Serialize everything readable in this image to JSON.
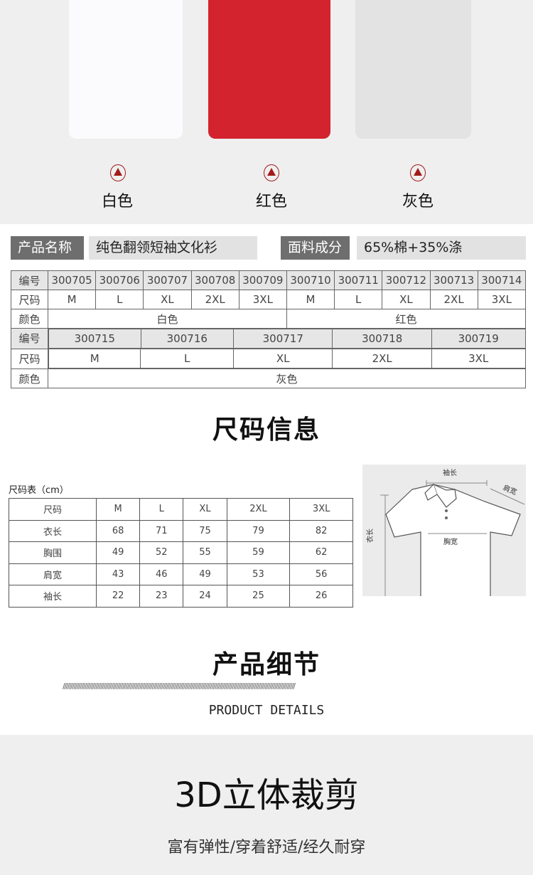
{
  "colors": {
    "white_shirt": "#fbfbfd",
    "red_shirt": "#d3232f",
    "gray_shirt": "#e3e3e3",
    "arrow": "#a31a1a",
    "label_dark": "#6e6e6e",
    "label_light": "#e2e2e2"
  },
  "swatches": [
    {
      "label": "白色",
      "icon": "up-arrow-circle-icon"
    },
    {
      "label": "红色",
      "icon": "up-arrow-circle-icon"
    },
    {
      "label": "灰色",
      "icon": "up-arrow-circle-icon"
    }
  ],
  "info": {
    "name_label": "产品名称",
    "name_value": "纯色翻领短袖文化衫",
    "fabric_label": "面料成分",
    "fabric_value": "65%棉+35%涤"
  },
  "sku_table": {
    "row_labels": {
      "code": "编号",
      "size": "尺码",
      "color": "颜色"
    },
    "group1": {
      "codes": [
        "300705",
        "300706",
        "300707",
        "300708",
        "300709",
        "300710",
        "300711",
        "300712",
        "300713",
        "300714"
      ],
      "sizes": [
        "M",
        "L",
        "XL",
        "2XL",
        "3XL",
        "M",
        "L",
        "XL",
        "2XL",
        "3XL"
      ],
      "colors": [
        "白色",
        "红色"
      ]
    },
    "group2": {
      "codes": [
        "300715",
        "300716",
        "300717",
        "300718",
        "300719"
      ],
      "sizes": [
        "M",
        "L",
        "XL",
        "2XL",
        "3XL"
      ],
      "color": "灰色"
    }
  },
  "size_section": {
    "title": "尺码信息",
    "caption": "尺码表（cm）",
    "header": [
      "尺码",
      "M",
      "L",
      "XL",
      "2XL",
      "3XL"
    ],
    "rows": [
      [
        "衣长",
        "68",
        "71",
        "75",
        "79",
        "82"
      ],
      [
        "胸围",
        "49",
        "52",
        "55",
        "59",
        "62"
      ],
      [
        "肩宽",
        "43",
        "46",
        "49",
        "53",
        "56"
      ],
      [
        "袖长",
        "22",
        "23",
        "24",
        "25",
        "26"
      ]
    ],
    "diagram_labels": {
      "sleeve": "袖长",
      "shoulder": "肩宽",
      "chest": "胸宽",
      "length": "衣长"
    }
  },
  "details": {
    "title": "产品细节",
    "slashes": "////////////////////////////////////////////////////////////////////////////////////////////////////////////////////////////////////////////////////",
    "subtitle": "PRODUCT DETAILS"
  },
  "feature": {
    "title": "3D立体裁剪",
    "subtitle": "富有弹性/穿着舒适/经久耐穿"
  }
}
